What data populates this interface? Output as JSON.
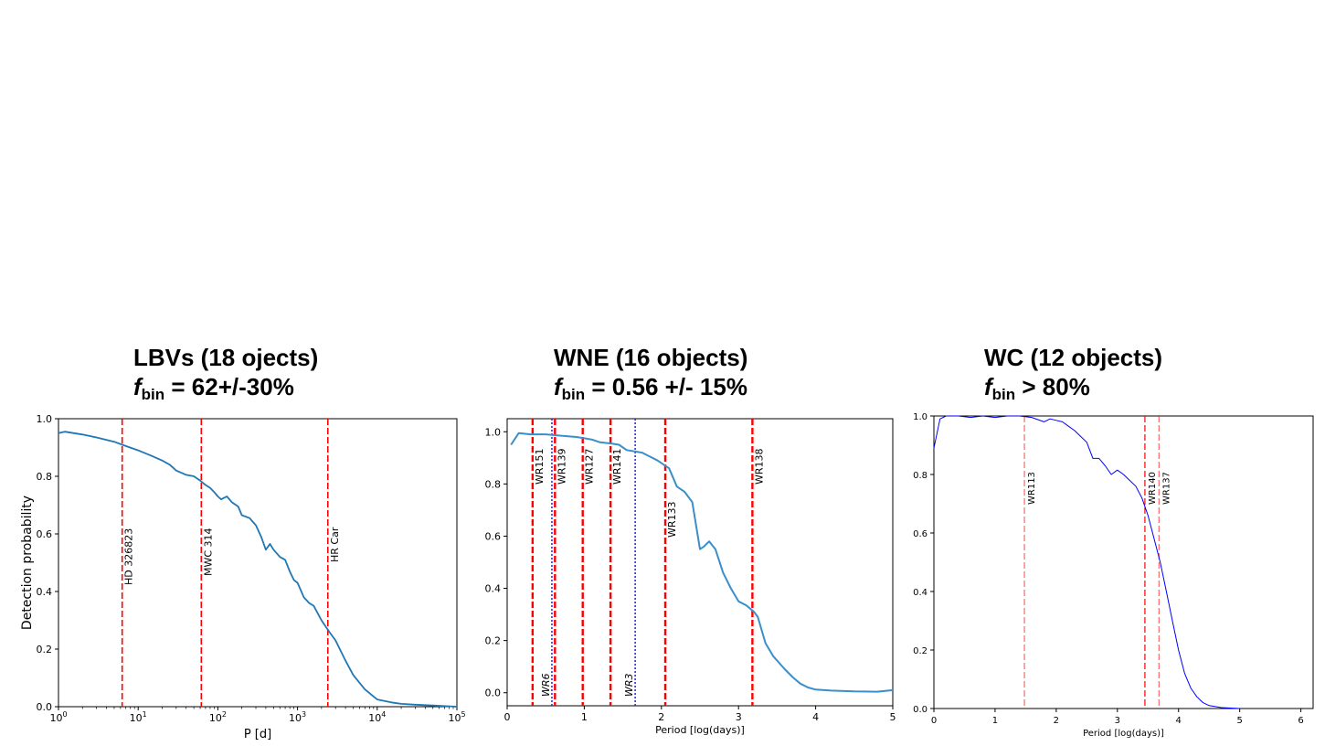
{
  "panels": [
    {
      "title_line1": "LBVs (18 ojects)",
      "fbin_symbol": "f",
      "fbin_sub": "bin",
      "fbin_value": " = 62+/-30%"
    },
    {
      "title_line1": "WNE (16 objects)",
      "fbin_symbol": "f",
      "fbin_sub": "bin",
      "fbin_value": " = 0.56 +/- 15%"
    },
    {
      "title_line1": "WC (12 objects)",
      "fbin_symbol": "f",
      "fbin_sub": "bin",
      "fbin_value": " > 80%"
    }
  ],
  "colors": {
    "curve1": "#1f77b4",
    "curve2": "#3a8fca",
    "curve3": "#0000ff",
    "red_line": "#ff0000",
    "blue_dotted": "#2222dd"
  },
  "chart_data": [
    {
      "type": "line",
      "title": "LBVs (18 ojects)",
      "xlabel": "P [d]",
      "ylabel": "Detection probability",
      "xscale": "log",
      "xlim": [
        1,
        100000
      ],
      "ylim": [
        0.0,
        1.0
      ],
      "xticks": [
        {
          "v": 1,
          "base": "10",
          "exp": "0"
        },
        {
          "v": 10,
          "base": "10",
          "exp": "1"
        },
        {
          "v": 100,
          "base": "10",
          "exp": "2"
        },
        {
          "v": 1000,
          "base": "10",
          "exp": "3"
        },
        {
          "v": 10000,
          "base": "10",
          "exp": "4"
        },
        {
          "v": 100000,
          "base": "10",
          "exp": "5"
        }
      ],
      "yticks": [
        {
          "v": 0.0,
          "label": "0.0"
        },
        {
          "v": 0.2,
          "label": "0.2"
        },
        {
          "v": 0.4,
          "label": "0.4"
        },
        {
          "v": 0.6,
          "label": "0.6"
        },
        {
          "v": 0.8,
          "label": "0.8"
        },
        {
          "v": 1.0,
          "label": "1.0"
        }
      ],
      "series": [
        {
          "name": "detection probability",
          "x": [
            1,
            1.2,
            2,
            3,
            5,
            7,
            10,
            15,
            20,
            25,
            30,
            40,
            50,
            60,
            70,
            80,
            90,
            100,
            110,
            130,
            150,
            180,
            200,
            250,
            300,
            350,
            400,
            450,
            500,
            600,
            700,
            800,
            900,
            1000,
            1200,
            1400,
            1600,
            2000,
            2500,
            3000,
            4000,
            5000,
            7000,
            10000,
            15000,
            20000,
            30000,
            50000,
            100000
          ],
          "y": [
            0.95,
            0.955,
            0.945,
            0.935,
            0.92,
            0.905,
            0.89,
            0.87,
            0.855,
            0.84,
            0.82,
            0.805,
            0.8,
            0.785,
            0.77,
            0.76,
            0.745,
            0.73,
            0.72,
            0.73,
            0.71,
            0.695,
            0.665,
            0.655,
            0.63,
            0.59,
            0.545,
            0.565,
            0.545,
            0.52,
            0.51,
            0.47,
            0.44,
            0.43,
            0.38,
            0.36,
            0.35,
            0.3,
            0.26,
            0.23,
            0.16,
            0.11,
            0.06,
            0.025,
            0.015,
            0.01,
            0.007,
            0.004,
            0.0
          ]
        }
      ],
      "vlines": [
        {
          "x": 6.3,
          "label": "HD 326823",
          "style": "red-dashed"
        },
        {
          "x": 62,
          "label": "MWC 314",
          "style": "red-dashed"
        },
        {
          "x": 2400,
          "label": "HR Car",
          "style": "red-dashed"
        }
      ]
    },
    {
      "type": "line",
      "title": "WNE (16 objects)",
      "xlabel": "Period [log(days)]",
      "ylabel": "",
      "xlim": [
        0,
        5
      ],
      "ylim": [
        -0.05,
        1.05
      ],
      "xticks": [
        {
          "v": 0,
          "label": "0"
        },
        {
          "v": 1,
          "label": "1"
        },
        {
          "v": 2,
          "label": "2"
        },
        {
          "v": 3,
          "label": "3"
        },
        {
          "v": 4,
          "label": "4"
        },
        {
          "v": 5,
          "label": "5"
        }
      ],
      "yticks": [
        {
          "v": 0.0,
          "label": "0.0"
        },
        {
          "v": 0.2,
          "label": "0.2"
        },
        {
          "v": 0.4,
          "label": "0.4"
        },
        {
          "v": 0.6,
          "label": "0.6"
        },
        {
          "v": 0.8,
          "label": "0.8"
        },
        {
          "v": 1.0,
          "label": "1.0"
        }
      ],
      "series": [
        {
          "name": "detection probability",
          "x": [
            0.05,
            0.15,
            0.3,
            0.5,
            0.7,
            0.9,
            1.0,
            1.1,
            1.2,
            1.35,
            1.45,
            1.55,
            1.75,
            1.85,
            1.95,
            2.05,
            2.1,
            2.2,
            2.3,
            2.4,
            2.5,
            2.55,
            2.62,
            2.7,
            2.8,
            2.9,
            3.0,
            3.1,
            3.2,
            3.25,
            3.35,
            3.45,
            3.6,
            3.7,
            3.8,
            3.9,
            4.0,
            4.2,
            4.5,
            4.8,
            5.0
          ],
          "y": [
            0.95,
            0.995,
            0.99,
            0.99,
            0.985,
            0.98,
            0.975,
            0.97,
            0.96,
            0.955,
            0.95,
            0.93,
            0.92,
            0.905,
            0.89,
            0.87,
            0.86,
            0.79,
            0.77,
            0.73,
            0.55,
            0.56,
            0.58,
            0.55,
            0.46,
            0.4,
            0.35,
            0.335,
            0.31,
            0.29,
            0.19,
            0.14,
            0.09,
            0.06,
            0.035,
            0.02,
            0.012,
            0.008,
            0.005,
            0.004,
            0.01
          ]
        }
      ],
      "vlines": [
        {
          "x": 0.33,
          "label": "WR151",
          "style": "red-dashed"
        },
        {
          "x": 0.58,
          "label": "WR6",
          "style": "blue-dotted"
        },
        {
          "x": 0.62,
          "label": "WR139",
          "style": "red-dashed"
        },
        {
          "x": 0.98,
          "label": "WR127",
          "style": "red-dashed"
        },
        {
          "x": 1.34,
          "label": "WR141",
          "style": "red-dashed"
        },
        {
          "x": 1.66,
          "label": "WR3",
          "style": "blue-dotted"
        },
        {
          "x": 2.05,
          "label": "WR133",
          "style": "red-dashed"
        },
        {
          "x": 3.18,
          "label": "WR138",
          "style": "red-dashed"
        }
      ]
    },
    {
      "type": "line",
      "title": "WC (12 objects)",
      "xlabel": "Period [log(days)]",
      "ylabel": "",
      "xlim": [
        0,
        6.2
      ],
      "ylim": [
        0.0,
        1.0
      ],
      "xticks": [
        {
          "v": 0,
          "label": "0"
        },
        {
          "v": 1,
          "label": "1"
        },
        {
          "v": 2,
          "label": "2"
        },
        {
          "v": 3,
          "label": "3"
        },
        {
          "v": 4,
          "label": "4"
        },
        {
          "v": 5,
          "label": "5"
        },
        {
          "v": 6,
          "label": "6"
        }
      ],
      "yticks": [
        {
          "v": 0.0,
          "label": "0.0"
        },
        {
          "v": 0.2,
          "label": "0.2"
        },
        {
          "v": 0.4,
          "label": "0.4"
        },
        {
          "v": 0.6,
          "label": "0.6"
        },
        {
          "v": 0.8,
          "label": "0.8"
        },
        {
          "v": 1.0,
          "label": "1.0"
        }
      ],
      "series": [
        {
          "name": "detection probability",
          "x": [
            0.0,
            0.1,
            0.2,
            0.4,
            0.6,
            0.8,
            1.0,
            1.2,
            1.4,
            1.6,
            1.8,
            1.9,
            2.0,
            2.1,
            2.2,
            2.3,
            2.4,
            2.5,
            2.6,
            2.7,
            2.8,
            2.9,
            3.0,
            3.1,
            3.2,
            3.3,
            3.4,
            3.5,
            3.6,
            3.7,
            3.8,
            3.9,
            4.0,
            4.1,
            4.2,
            4.3,
            4.4,
            4.5,
            4.7,
            5.0
          ],
          "y": [
            0.89,
            0.99,
            1.0,
            1.0,
            0.995,
            1.0,
            0.995,
            1.0,
            1.0,
            0.995,
            0.98,
            0.99,
            0.985,
            0.98,
            0.965,
            0.95,
            0.93,
            0.91,
            0.855,
            0.855,
            0.83,
            0.8,
            0.815,
            0.8,
            0.78,
            0.76,
            0.72,
            0.66,
            0.58,
            0.5,
            0.4,
            0.3,
            0.2,
            0.12,
            0.07,
            0.04,
            0.02,
            0.01,
            0.003,
            0.0
          ]
        }
      ],
      "vlines": [
        {
          "x": 1.48,
          "label": "WR113",
          "style": "light-red-dashed"
        },
        {
          "x": 3.45,
          "label": "WR140",
          "style": "red-dashed"
        },
        {
          "x": 3.68,
          "label": "WR137",
          "style": "light-red-dashed"
        }
      ]
    }
  ]
}
